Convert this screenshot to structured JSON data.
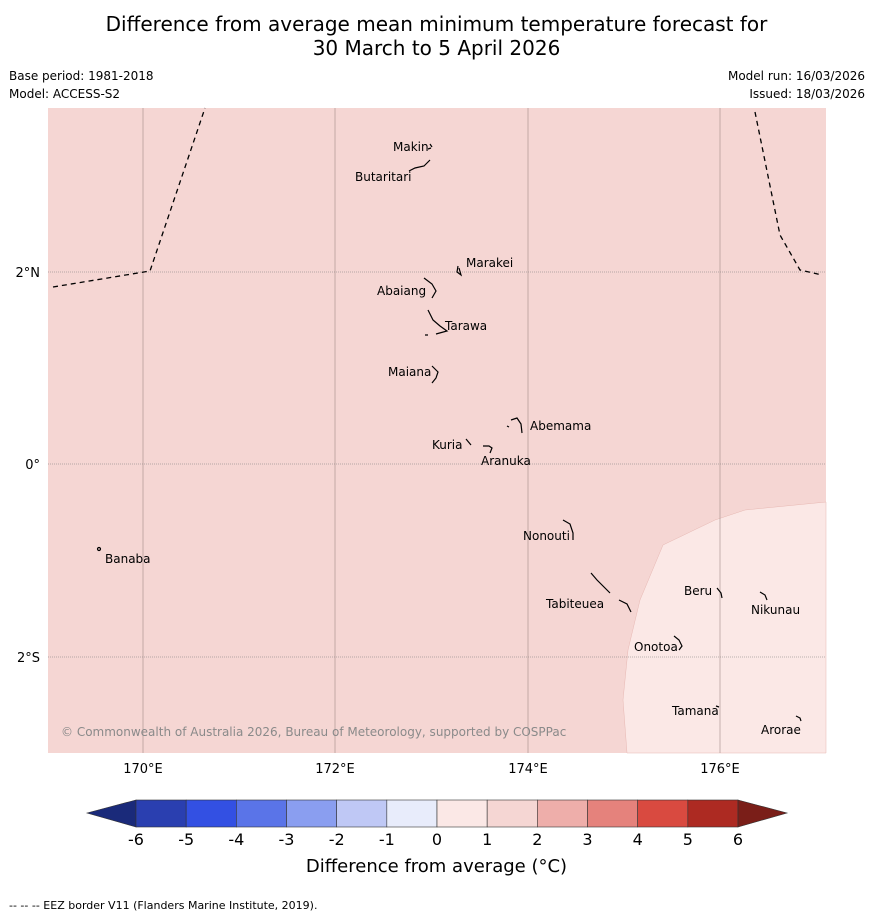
{
  "title": {
    "line1": "Difference from average mean minimum temperature forecast for",
    "line2": "30 March to 5 April 2026"
  },
  "meta": {
    "base_period": "Base period: 1981-2018",
    "model": "Model: ACCESS-S2",
    "model_run": "Model run: 16/03/2026",
    "issued": "Issued: 18/03/2026"
  },
  "map": {
    "background_color": "#f5d6d3",
    "lat_ticks": [
      "2°N",
      "0°",
      "2°S"
    ],
    "lon_ticks": [
      "170°E",
      "172°E",
      "174°E",
      "176°E"
    ],
    "places": [
      {
        "name": "Makin"
      },
      {
        "name": "Butaritari"
      },
      {
        "name": "Marakei"
      },
      {
        "name": "Abaiang"
      },
      {
        "name": "Tarawa"
      },
      {
        "name": "Maiana"
      },
      {
        "name": "Abemama"
      },
      {
        "name": "Kuria"
      },
      {
        "name": "Aranuka"
      },
      {
        "name": "Nonouti"
      },
      {
        "name": "Banaba"
      },
      {
        "name": "Beru"
      },
      {
        "name": "Nikunau"
      },
      {
        "name": "Tabiteuea"
      },
      {
        "name": "Onotoa"
      },
      {
        "name": "Tamana"
      },
      {
        "name": "Arorae"
      }
    ],
    "copyright": "© Commonwealth of Australia 2026, Bureau of Meteorology, supported by COSPPac"
  },
  "colorbar": {
    "ticks": [
      "-6",
      "-5",
      "-4",
      "-3",
      "-2",
      "-1",
      "0",
      "1",
      "2",
      "3",
      "4",
      "5",
      "6"
    ],
    "colors": [
      "#2a3fb0",
      "#3350e3",
      "#5a74e8",
      "#8a9ef0",
      "#bfc8f5",
      "#e8ecfb",
      "#fbe8e6",
      "#f5d6d3",
      "#eeaeaa",
      "#e5827c",
      "#d94a40",
      "#ad2a22"
    ],
    "under_color": "#1a2a7a",
    "over_color": "#7a1e18",
    "label": "Difference from average (°C)"
  },
  "footer": "--  --  -- EEZ border V11 (Flanders Marine Institute, 2019)."
}
